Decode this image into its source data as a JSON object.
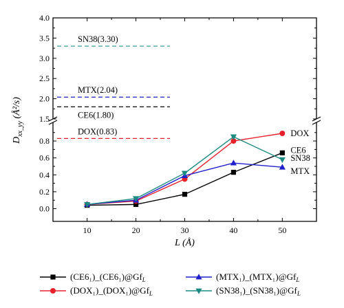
{
  "chart_data": {
    "type": "line",
    "xlabel": "L (Å)",
    "ylabel": "D_xx_yy (Å²/s)",
    "x": [
      10,
      20,
      30,
      40,
      50
    ],
    "xticks": [
      "10",
      "20",
      "30",
      "40",
      "50"
    ],
    "xlim": [
      3,
      57
    ],
    "y_axis_break": true,
    "lower_ylim": [
      -0.15,
      1.02
    ],
    "upper_ylim": [
      1.5,
      4.0
    ],
    "lower_yticks": [
      0.0,
      0.2,
      0.4,
      0.6,
      0.8
    ],
    "upper_yticks": [
      1.5,
      2.0,
      2.5,
      3.0,
      3.5,
      4.0
    ],
    "lower_ytick_labels": [
      "0.0",
      "0.2",
      "0.4",
      "0.6",
      "0.8"
    ],
    "upper_ytick_labels": [
      "1.5",
      "2.0",
      "2.5",
      "3.0",
      "3.5",
      "4.0"
    ],
    "series": [
      {
        "name": "(CE6₁)_(CE6₁)@Gf_L",
        "color": "#000000",
        "marker": "square",
        "values": [
          0.04,
          0.05,
          0.17,
          0.43,
          0.66
        ],
        "end_label": "CE6"
      },
      {
        "name": "(DOX₁)_(DOX₁)@Gf_L",
        "color": "#e8202a",
        "marker": "circle",
        "values": [
          0.05,
          0.09,
          0.35,
          0.8,
          0.89
        ],
        "end_label": "DOX"
      },
      {
        "name": "(MTX₁)_(MTX₁)@Gf_L",
        "color": "#1f1fcc",
        "marker": "triangle-up",
        "values": [
          0.05,
          0.1,
          0.39,
          0.54,
          0.49
        ],
        "end_label": "MTX"
      },
      {
        "name": "(SN38₁)_(SN38₁)@Gf_L",
        "color": "#1b8a80",
        "marker": "triangle-down",
        "values": [
          0.05,
          0.12,
          0.42,
          0.85,
          0.58
        ],
        "end_label": "SN38"
      }
    ],
    "reference_lines": [
      {
        "label": "SN38(3.30)",
        "value": 3.3,
        "color": "#3a9e95",
        "style": "dashed"
      },
      {
        "label": "MTX(2.04)",
        "value": 2.04,
        "color": "#1f1fcc",
        "style": "dashed"
      },
      {
        "label": "CE6(1.80)",
        "value": 1.8,
        "color": "#000000",
        "style": "dashed"
      },
      {
        "label": "DOX(0.83)",
        "value": 0.83,
        "color": "#e8202a",
        "style": "dashed"
      }
    ],
    "grid": false,
    "legend_position": "bottom"
  }
}
